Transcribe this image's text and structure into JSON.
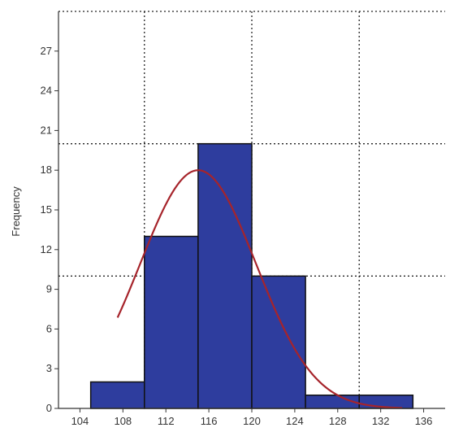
{
  "chart_data": {
    "type": "bar",
    "subtype": "histogram-with-normal-curve",
    "title": "",
    "xlabel": "",
    "ylabel": "Frequency",
    "xlim": [
      102,
      138
    ],
    "ylim": [
      0,
      30
    ],
    "x_ticks": [
      104,
      108,
      112,
      116,
      120,
      124,
      128,
      132,
      136
    ],
    "y_ticks": [
      0,
      3,
      6,
      9,
      12,
      15,
      18,
      21,
      24,
      27
    ],
    "bins": [
      {
        "x0": 105,
        "x1": 110,
        "value": 2
      },
      {
        "x0": 110,
        "x1": 115,
        "value": 13
      },
      {
        "x0": 115,
        "x1": 120,
        "value": 20
      },
      {
        "x0": 120,
        "x1": 125,
        "value": 10
      },
      {
        "x0": 125,
        "x1": 130,
        "value": 1
      },
      {
        "x0": 130,
        "x1": 135,
        "value": 1
      }
    ],
    "normal_curve": {
      "mean": 115,
      "peak": 18,
      "sd": 5.4,
      "x_range": [
        107.5,
        134
      ]
    },
    "grid": "dotted",
    "grid_x": [
      110,
      120,
      130
    ],
    "grid_y": [
      10,
      20,
      30
    ],
    "colors": {
      "bar_fill": "#2e3d9e",
      "bar_stroke": "#111111",
      "curve": "#a6242b",
      "grid": "#222222",
      "axis": "#333333"
    }
  }
}
